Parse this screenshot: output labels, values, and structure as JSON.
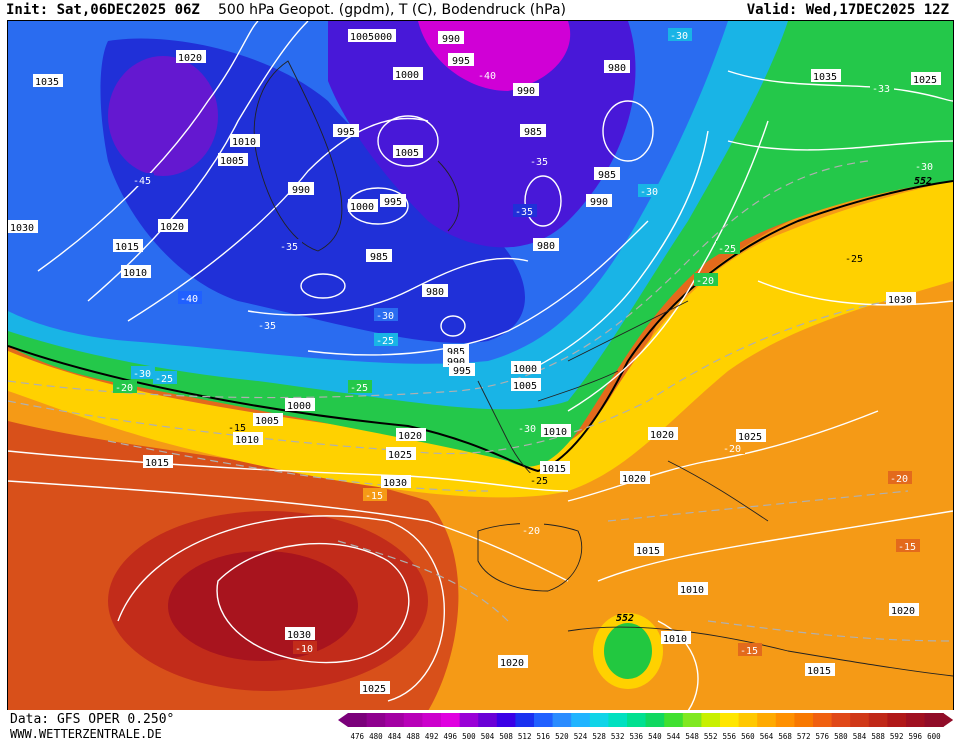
{
  "header": {
    "init": "Init: Sat,06DEC2025 06Z",
    "title": "500 hPa Geopot. (gpdm), T (C), Bodendruck (hPa)",
    "valid": "Valid: Wed,17DEC2025 12Z"
  },
  "footer": {
    "data_source": "Data: GFS OPER 0.250°",
    "website": "WWW.WETTERZENTRALE.DE"
  },
  "colorbar": {
    "unit": "gpdm",
    "ticks": [
      "476",
      "480",
      "484",
      "488",
      "492",
      "496",
      "500",
      "504",
      "508",
      "512",
      "516",
      "520",
      "524",
      "528",
      "532",
      "536",
      "540",
      "544",
      "548",
      "552",
      "556",
      "560",
      "564",
      "568",
      "572",
      "576",
      "580",
      "584",
      "588",
      "592",
      "596",
      "600"
    ],
    "colors": [
      "#7a007a",
      "#8f008f",
      "#a300a3",
      "#b800b8",
      "#cc00cc",
      "#e000e0",
      "#9a00d6",
      "#6a00d6",
      "#3a00e6",
      "#1a30f0",
      "#2060ff",
      "#2a8cff",
      "#20b4ff",
      "#10d4e8",
      "#00e0c0",
      "#00e090",
      "#10d860",
      "#40e030",
      "#80e820",
      "#c8f000",
      "#ffe600",
      "#ffc800",
      "#ffaa00",
      "#ff9000",
      "#f87800",
      "#f06010",
      "#e04818",
      "#d03818",
      "#c02818",
      "#b01818",
      "#a01020",
      "#900c28"
    ]
  },
  "map": {
    "isotherm_552_label": "552",
    "pressure_labels": [
      "1035",
      "1020",
      "1030",
      "1015",
      "1010",
      "1010",
      "1005",
      "1005",
      "1000",
      "990",
      "995",
      "1000",
      "990",
      "980",
      "990",
      "995",
      "1000",
      "985",
      "980",
      "985",
      "990",
      "995",
      "1000",
      "1005",
      "1010",
      "1005",
      "1000",
      "1010",
      "1020",
      "1025",
      "1030",
      "1015",
      "1020",
      "1015",
      "1020",
      "1025",
      "1020",
      "1015",
      "1010",
      "1010",
      "1030",
      "1025",
      "1020",
      "1035",
      "1025",
      "1030",
      "1025",
      "980",
      "985",
      "990",
      "985",
      "1020",
      "1015",
      "1005",
      "1000",
      "990",
      "995",
      "1000"
    ],
    "temp_labels": [
      "-30",
      "-30",
      "-35",
      "-40",
      "-45",
      "-40",
      "-35",
      "-35",
      "-35",
      "-30",
      "-25",
      "-25",
      "-30",
      "-25",
      "-20",
      "-20",
      "-25",
      "-15",
      "-15",
      "-10",
      "-20",
      "-25",
      "-30",
      "-33",
      "-30",
      "-25",
      "-25",
      "-20",
      "-20",
      "-15",
      "-15",
      "-10",
      "-20",
      "-25"
    ],
    "lows_label": "552"
  }
}
